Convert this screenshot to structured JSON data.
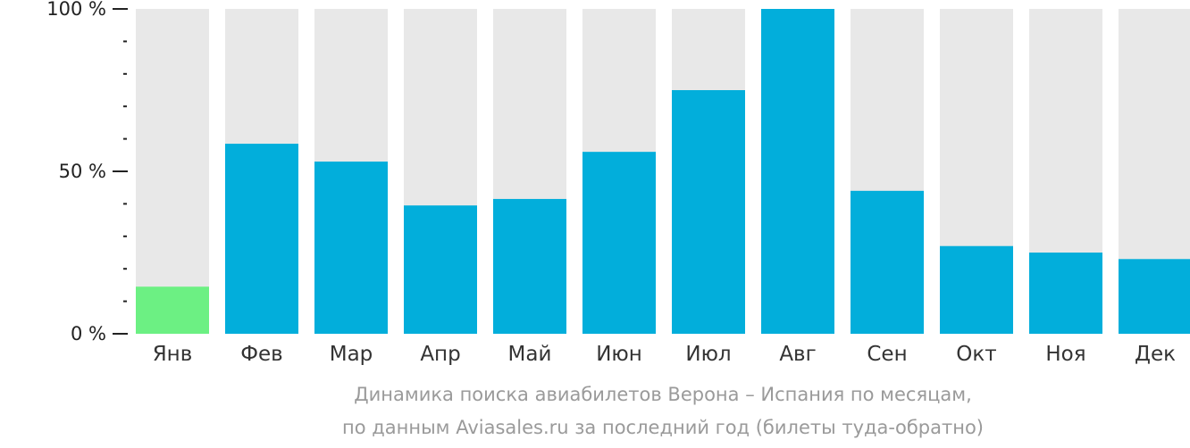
{
  "colors": {
    "track": "#e8e8e8",
    "bar": "#02aedb",
    "highlight": "#6cf083",
    "axis": "#222222"
  },
  "caption": {
    "line1": "Динамика поиска авиабилетов Верона – Испания по месяцам,",
    "line2": "по данным Aviasales.ru за последний год (билеты туда-обратно)"
  },
  "chart_data": {
    "type": "bar",
    "title": "",
    "xlabel": "",
    "ylabel": "",
    "ylim": [
      0,
      100
    ],
    "yticks": [
      {
        "value": 0,
        "label": "0 %"
      },
      {
        "value": 50,
        "label": "50 %"
      },
      {
        "value": 100,
        "label": "100 %"
      }
    ],
    "minor_ytick_step": 10,
    "grid": false,
    "categories": [
      "Янв",
      "Фев",
      "Мар",
      "Апр",
      "Май",
      "Июн",
      "Июл",
      "Авг",
      "Сен",
      "Окт",
      "Ноя",
      "Дек"
    ],
    "values": [
      14.5,
      58.5,
      53,
      39.5,
      41.5,
      56,
      75,
      100,
      44,
      27,
      25,
      23
    ],
    "highlighted_category": "Янв"
  }
}
